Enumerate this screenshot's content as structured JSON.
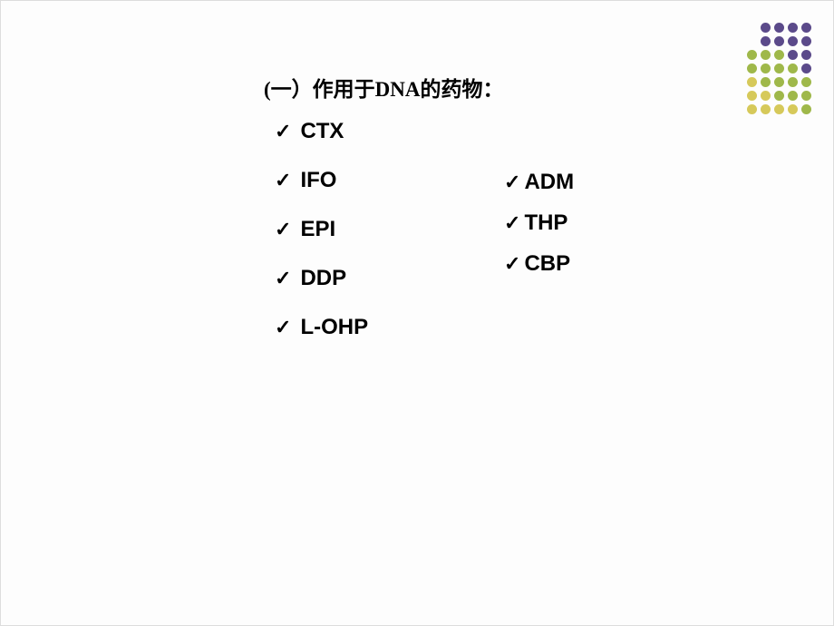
{
  "heading": "(一）作用于DNA的药物：",
  "col1": {
    "i0": "CTX",
    "i1": "IFO",
    "i2": "EPI",
    "i3": "DDP",
    "i4": "L-OHP"
  },
  "col2": {
    "i0": "ADM",
    "i1": "THP",
    "i2": "CBP"
  },
  "decoration": {
    "colors": {
      "purple": "#5b4a8a",
      "green": "#9fb84a",
      "yellow": "#d6c95a"
    },
    "pattern": [
      [
        null,
        "purple",
        "purple",
        "purple",
        "purple"
      ],
      [
        null,
        "purple",
        "purple",
        "purple",
        "purple"
      ],
      [
        "green",
        "green",
        "green",
        "purple",
        "purple"
      ],
      [
        "green",
        "green",
        "green",
        "green",
        "purple"
      ],
      [
        "yellow",
        "green",
        "green",
        "green",
        "green"
      ],
      [
        "yellow",
        "yellow",
        "green",
        "green",
        "green"
      ],
      [
        "yellow",
        "yellow",
        "yellow",
        "yellow",
        "green"
      ]
    ]
  },
  "check_glyph": "✓"
}
